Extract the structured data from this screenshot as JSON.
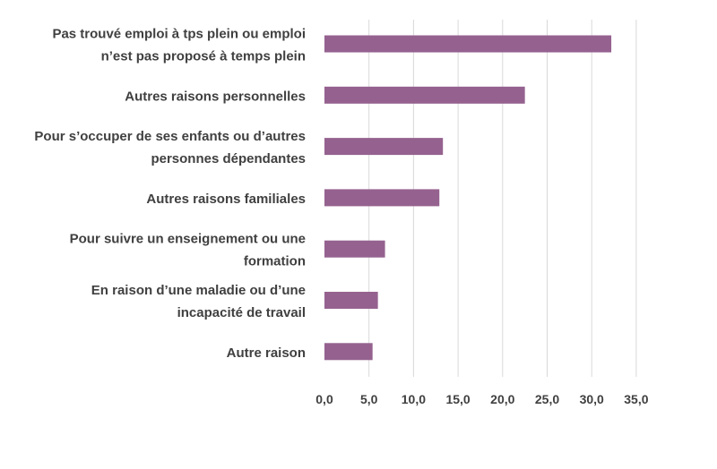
{
  "chart_data": {
    "type": "bar",
    "orientation": "horizontal",
    "title": "",
    "xlabel": "",
    "ylabel": "",
    "categories": [
      [
        "Pas trouvé emploi à tps plein ou emploi",
        "n’est pas proposé à temps plein"
      ],
      [
        "Autres raisons personnelles"
      ],
      [
        "Pour s’occuper de ses enfants ou d’autres",
        "personnes dépendantes"
      ],
      [
        "Autres raisons familiales"
      ],
      [
        "Pour suivre un enseignement ou une",
        "formation"
      ],
      [
        "En raison d’une maladie ou d’une",
        "incapacité de travail"
      ],
      [
        "Autre raison"
      ]
    ],
    "values": [
      32.2,
      22.5,
      13.3,
      12.9,
      6.8,
      6.0,
      5.4
    ],
    "xlim": [
      0,
      35
    ],
    "xticks": [
      "0,0",
      "5,0",
      "10,0",
      "15,0",
      "20,0",
      "25,0",
      "30,0",
      "35,0"
    ],
    "grid": true,
    "legend": "none",
    "colors": {
      "bar": "#95628f",
      "grid": "#d9d9d9",
      "text": "#404040"
    }
  }
}
